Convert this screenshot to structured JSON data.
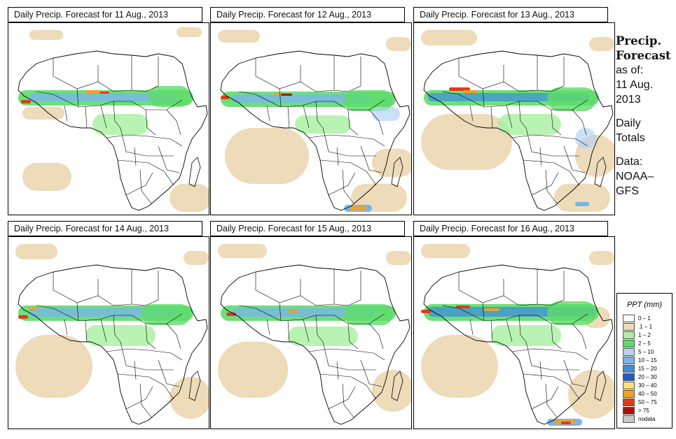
{
  "panels": [
    {
      "title": "Daily Precip. Forecast for  11 Aug., 2013"
    },
    {
      "title": "Daily Precip. Forecast for  12 Aug., 2013"
    },
    {
      "title": "Daily Precip. Forecast for  13 Aug., 2013"
    },
    {
      "title": "Daily Precip. Forecast for  14 Aug., 2013"
    },
    {
      "title": "Daily Precip. Forecast for  15 Aug., 2013"
    },
    {
      "title": "Daily Precip. Forecast for  16 Aug., 2013"
    }
  ],
  "sidebar": {
    "heading_line1": "Precip.",
    "heading_line2": "Forecast",
    "asof_line1": "as of:",
    "asof_line2": "11 Aug.",
    "asof_line3": "2013",
    "totals_line1": "Daily",
    "totals_line2": "Totals",
    "data_line1": "Data:",
    "data_line2": "NOAA–",
    "data_line3": "GFS"
  },
  "legend": {
    "title": "PPT (mm)",
    "items": [
      {
        "label": "0 – 1",
        "color": "#ffffff"
      },
      {
        "label": ".1 – 1",
        "color": "#ecd9b5"
      },
      {
        "label": "1 – 2",
        "color": "#a8f0a0"
      },
      {
        "label": "2 – 5",
        "color": "#5fdc6a"
      },
      {
        "label": "5 – 10",
        "color": "#b4d4f4"
      },
      {
        "label": "10 – 15",
        "color": "#78b4ec"
      },
      {
        "label": "15 – 20",
        "color": "#3c8ce0"
      },
      {
        "label": "20 – 30",
        "color": "#1c5cc8"
      },
      {
        "label": "30 – 40",
        "color": "#f8e070"
      },
      {
        "label": "40 – 50",
        "color": "#f4a020"
      },
      {
        "label": "50 – 75",
        "color": "#e03c14"
      },
      {
        "label": "> 75",
        "color": "#a8140c"
      },
      {
        "label": "nodata",
        "color": "#c8c8c8"
      }
    ]
  }
}
